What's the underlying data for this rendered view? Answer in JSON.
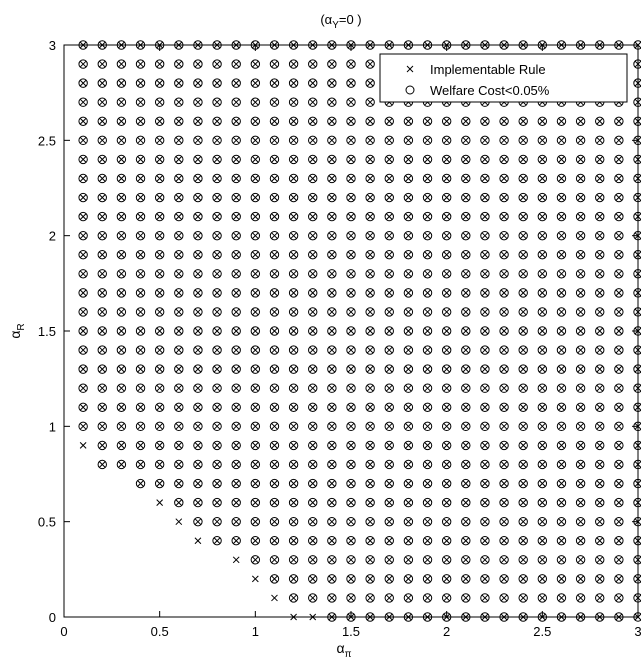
{
  "chart_data": {
    "type": "scatter",
    "title": "(α_Y=0 )",
    "xlabel": "α_π",
    "ylabel": "α_R",
    "xlim": [
      0,
      3
    ],
    "ylim": [
      0,
      3
    ],
    "xticks": [
      "0",
      "0.5",
      "1",
      "1.5",
      "2",
      "2.5",
      "3"
    ],
    "yticks": [
      "0",
      "0.5",
      "1",
      "1.5",
      "2",
      "2.5",
      "3"
    ],
    "grid": false,
    "legend_position": "top-right",
    "grid_spacing": 0.1,
    "series": [
      {
        "name": "Implementable Rule",
        "marker": "x",
        "rule": "all grid points in [0.1,3] x [0,3] except those below the boundary",
        "min_y_by_x": [
          [
            0.1,
            0.9
          ],
          [
            0.2,
            0.8
          ],
          [
            0.3,
            0.8
          ],
          [
            0.4,
            0.7
          ],
          [
            0.5,
            0.6
          ],
          [
            0.6,
            0.5
          ],
          [
            0.7,
            0.4
          ],
          [
            0.8,
            0.4
          ],
          [
            0.9,
            0.3
          ],
          [
            1.0,
            0.2
          ],
          [
            1.1,
            0.1
          ],
          [
            1.2,
            0.0
          ],
          [
            1.3,
            0.0
          ],
          [
            1.4,
            0.0
          ]
        ]
      },
      {
        "name": "Welfare Cost<0.05%",
        "marker": "o",
        "rule": "same grid points, except the listed exclusions",
        "min_y_by_x": [
          [
            0.1,
            1.0
          ],
          [
            0.2,
            0.8
          ],
          [
            0.3,
            0.8
          ],
          [
            0.4,
            0.7
          ],
          [
            0.5,
            0.7
          ],
          [
            0.6,
            0.6
          ],
          [
            0.7,
            0.5
          ],
          [
            0.8,
            0.4
          ],
          [
            0.9,
            0.4
          ],
          [
            1.0,
            0.3
          ],
          [
            1.1,
            0.2
          ],
          [
            1.2,
            0.1
          ],
          [
            1.3,
            0.1
          ],
          [
            1.4,
            0.0
          ]
        ]
      }
    ]
  },
  "text": {
    "title_main": "(α",
    "title_sub": "Y",
    "title_rest": "=0 )",
    "xlabel_main": "α",
    "xlabel_sub": "π",
    "ylabel_main": "α",
    "ylabel_sub": "R",
    "legend_x": "Implementable Rule",
    "legend_o": "Welfare Cost<0.05%"
  }
}
